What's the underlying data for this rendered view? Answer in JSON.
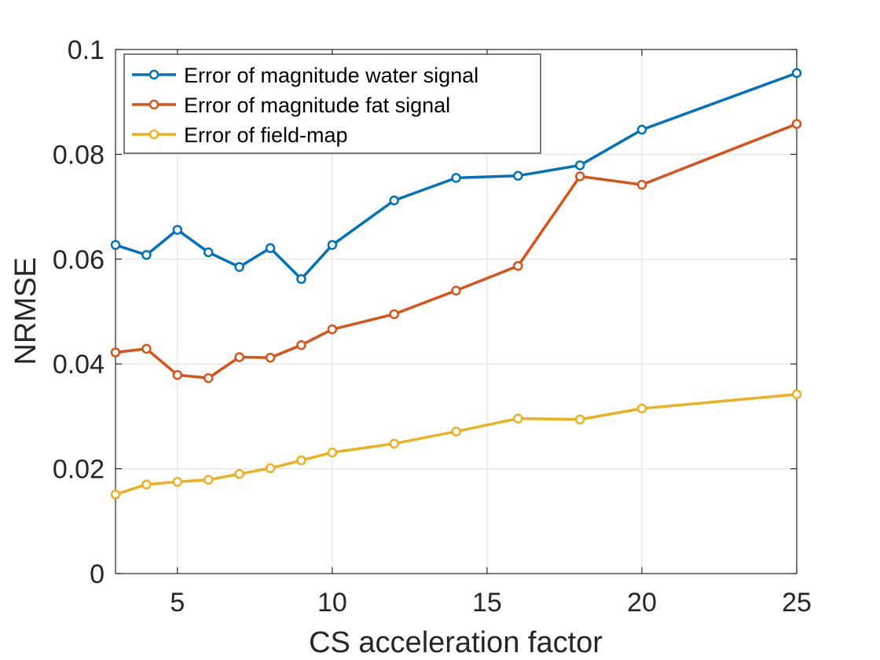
{
  "chart_data": {
    "type": "line",
    "xlabel": "CS acceleration factor",
    "ylabel": "NRMSE",
    "xlim": [
      3,
      25
    ],
    "ylim": [
      0,
      0.1
    ],
    "xticks": [
      5,
      10,
      15,
      20,
      25
    ],
    "yticks": [
      0,
      0.02,
      0.04,
      0.06,
      0.08,
      0.1
    ],
    "xtick_labels": [
      "5",
      "10",
      "15",
      "20",
      "25"
    ],
    "ytick_labels": [
      "0",
      "0.02",
      "0.04",
      "0.06",
      "0.08",
      "0.1"
    ],
    "grid": true,
    "legend_position": "top-left",
    "x": [
      3,
      4,
      5,
      6,
      7,
      8,
      9,
      10,
      12,
      14,
      16,
      18,
      20,
      25
    ],
    "series": [
      {
        "name": "Error of magnitude water signal",
        "color": "#0072BD",
        "marker": "circle",
        "values": [
          0.0627,
          0.0608,
          0.0656,
          0.0613,
          0.0585,
          0.0621,
          0.0562,
          0.0627,
          0.0712,
          0.0755,
          0.0759,
          0.0779,
          0.0847,
          0.0955
        ]
      },
      {
        "name": "Error of magnitude fat signal",
        "color": "#D95319",
        "marker": "circle",
        "values": [
          0.0422,
          0.0429,
          0.0379,
          0.0373,
          0.0413,
          0.0412,
          0.0436,
          0.0466,
          0.0495,
          0.054,
          0.0587,
          0.0758,
          0.0742,
          0.0858
        ]
      },
      {
        "name": "Error of field-map",
        "color": "#EDB120",
        "marker": "circle",
        "values": [
          0.0151,
          0.017,
          0.0175,
          0.0179,
          0.019,
          0.0201,
          0.0216,
          0.0231,
          0.0248,
          0.0271,
          0.0296,
          0.0294,
          0.0315,
          0.0342
        ]
      }
    ]
  }
}
